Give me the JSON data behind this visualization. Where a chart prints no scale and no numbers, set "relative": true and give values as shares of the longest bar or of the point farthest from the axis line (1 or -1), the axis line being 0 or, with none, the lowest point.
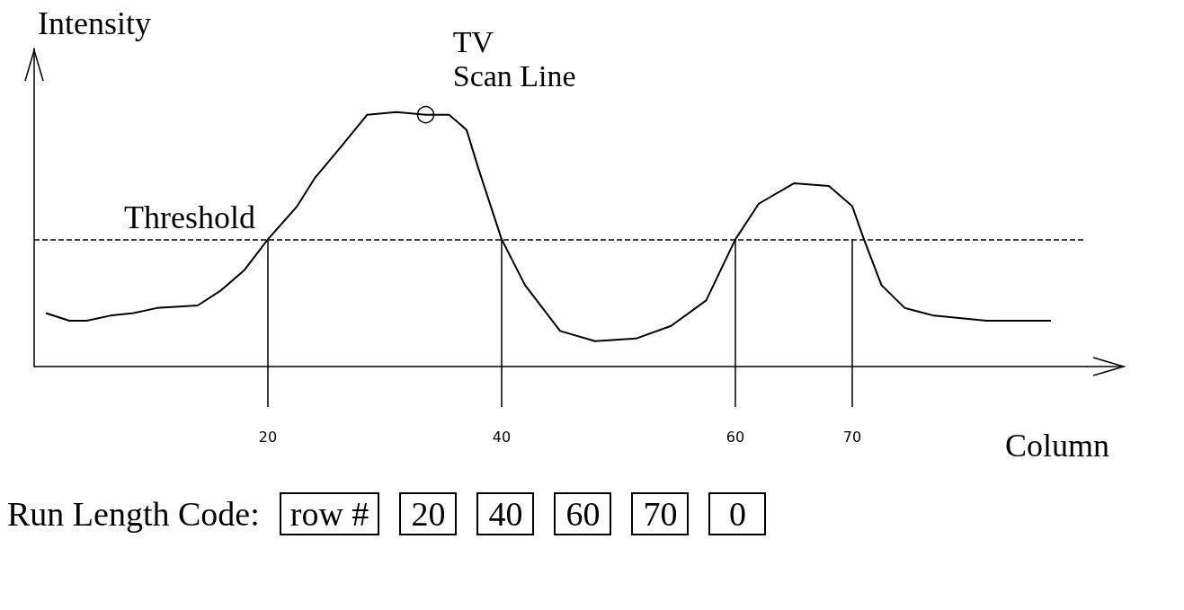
{
  "chart_data": {
    "type": "line",
    "relative": true,
    "ylabel": "Intensity",
    "xlabel": "Column",
    "xlim": [
      0,
      90
    ],
    "xticks": [
      20,
      40,
      60,
      70
    ],
    "x": [
      1,
      3,
      4.5,
      6.5,
      8.5,
      10.5,
      14,
      16,
      18,
      20,
      22.5,
      24,
      26,
      28.5,
      31,
      33.5,
      35.5,
      37,
      38,
      40,
      42,
      45,
      48,
      51.5,
      54.5,
      57.5,
      60,
      62,
      65,
      68,
      70,
      71,
      72.5,
      74.5,
      77,
      81.5,
      87
    ],
    "series": [
      {
        "color": "#000000",
        "values": [
          0.21,
          0.18,
          0.18,
          0.2,
          0.21,
          0.23,
          0.24,
          0.3,
          0.38,
          0.5,
          0.63,
          0.74,
          0.85,
          0.99,
          1.0,
          0.99,
          0.99,
          0.93,
          0.78,
          0.5,
          0.32,
          0.14,
          0.1,
          0.11,
          0.16,
          0.26,
          0.5,
          0.64,
          0.72,
          0.71,
          0.63,
          0.5,
          0.32,
          0.23,
          0.2,
          0.18,
          0.18
        ]
      }
    ],
    "ref_lines": [
      {
        "axis": "y",
        "value": 0.5,
        "label": "Threshold",
        "line_style": "dashed",
        "color": "#000000"
      },
      {
        "axis": "x",
        "value": 20,
        "color": "#000000"
      },
      {
        "axis": "x",
        "value": 40,
        "color": "#000000"
      },
      {
        "axis": "x",
        "value": 60,
        "color": "#000000"
      },
      {
        "axis": "x",
        "value": 70,
        "color": "#000000"
      }
    ],
    "annotations": [
      {
        "text": "TV\nScan Line",
        "x": 33.5,
        "y": 0.99
      },
      "Run Length Code:",
      "row #",
      "20",
      "40",
      "60",
      "70",
      "0"
    ]
  }
}
